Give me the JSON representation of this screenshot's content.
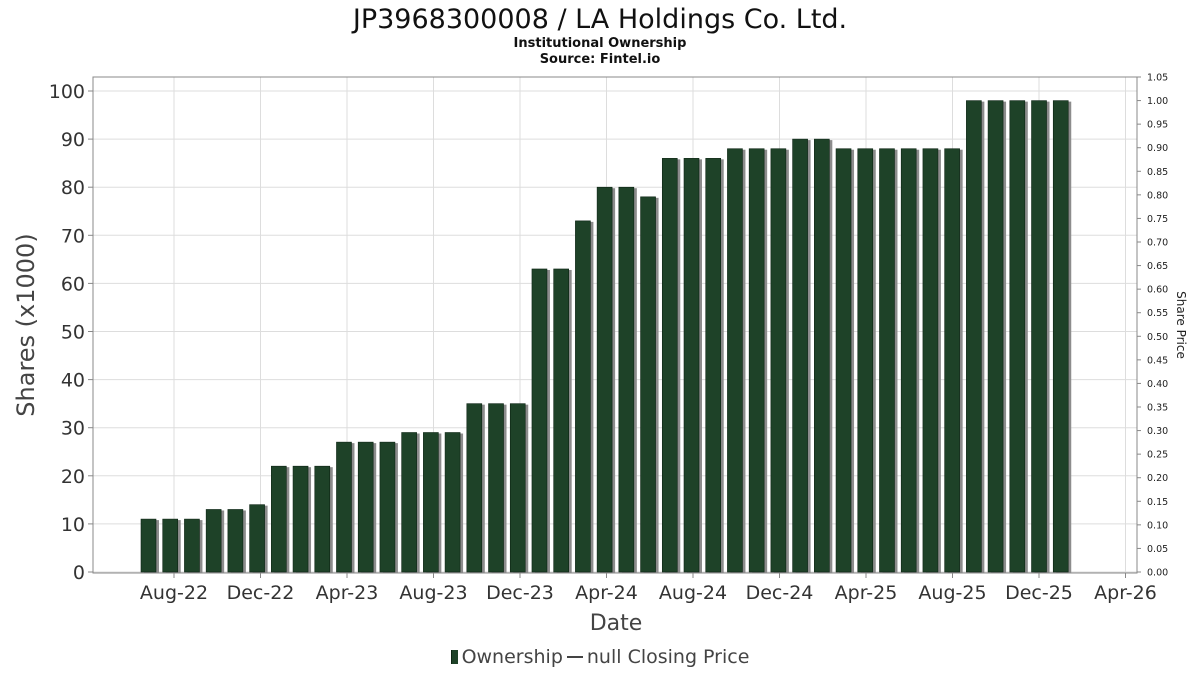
{
  "chart_data": {
    "type": "bar",
    "title": "JP3968300008 / LA Holdings Co. Ltd.",
    "subtitle": "Institutional Ownership",
    "source": "Source: Fintel.io",
    "xlabel": "Date",
    "ylabel": "Shares (x1000)",
    "y2label": "Share Price",
    "ylim": [
      0,
      100
    ],
    "y_ticks": [
      0,
      10,
      20,
      30,
      40,
      50,
      60,
      70,
      80,
      90,
      100
    ],
    "y2lim": [
      0,
      1.05
    ],
    "y2_ticks": [
      "0.00",
      "0.05",
      "0.10",
      "0.15",
      "0.20",
      "0.25",
      "0.30",
      "0.35",
      "0.40",
      "0.45",
      "0.50",
      "0.55",
      "0.60",
      "0.65",
      "0.70",
      "0.75",
      "0.80",
      "0.85",
      "0.90",
      "0.95",
      "1.00",
      "1.05"
    ],
    "x_ticks": [
      "Aug-22",
      "Dec-22",
      "Apr-23",
      "Aug-23",
      "Dec-23",
      "Apr-24",
      "Aug-24",
      "Dec-24",
      "Apr-25",
      "Aug-25",
      "Dec-25",
      "Apr-26"
    ],
    "grid": true,
    "series": [
      {
        "name": "Ownership",
        "color": "#1e4228",
        "values": [
          11,
          11,
          11,
          13,
          13,
          14,
          22,
          22,
          22,
          27,
          27,
          27,
          29,
          29,
          29,
          35,
          35,
          35,
          63,
          63,
          73,
          80,
          80,
          78,
          86,
          86,
          86,
          88,
          88,
          88,
          90,
          90,
          88,
          88,
          88,
          88,
          88,
          88,
          98,
          98,
          98,
          98,
          98
        ]
      },
      {
        "name": "null Closing Price",
        "color": "#444444",
        "values": []
      }
    ],
    "legend": [
      "Ownership",
      "null Closing Price"
    ],
    "legend_position": "bottom"
  }
}
